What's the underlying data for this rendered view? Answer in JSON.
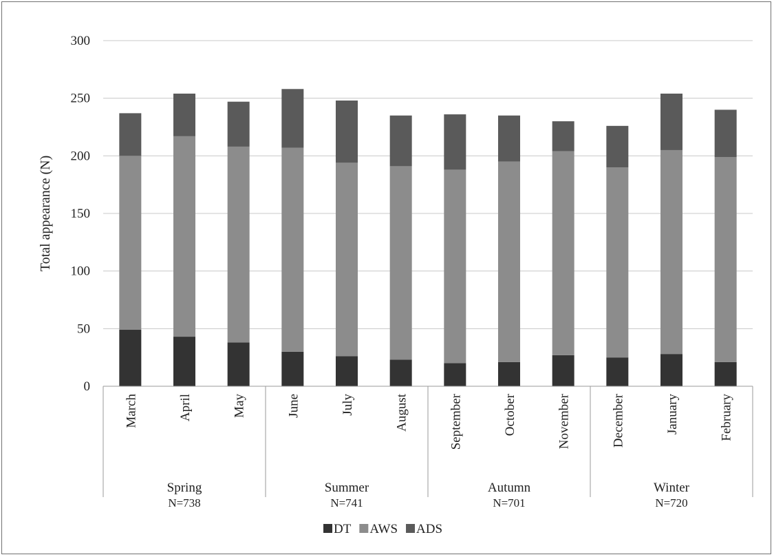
{
  "chart_data": {
    "type": "bar",
    "stacked": true,
    "ylabel": "Total appearance (N)",
    "ylim": [
      0,
      300
    ],
    "yticks": [
      0,
      50,
      100,
      150,
      200,
      250,
      300
    ],
    "grid": true,
    "legend_position": "bottom",
    "categories": [
      "March",
      "April",
      "May",
      "June",
      "July",
      "August",
      "September",
      "October",
      "November",
      "December",
      "January",
      "February"
    ],
    "groups": [
      {
        "name": "Spring",
        "n_label": "N=738",
        "months": 3
      },
      {
        "name": "Summer",
        "n_label": "N=741",
        "months": 3
      },
      {
        "name": "Autumn",
        "n_label": "N=701",
        "months": 3
      },
      {
        "name": "Winter",
        "n_label": "N=720",
        "months": 3
      }
    ],
    "series": [
      {
        "name": "DT",
        "color": "#333333",
        "values": [
          49,
          43,
          38,
          30,
          26,
          23,
          20,
          21,
          27,
          25,
          28,
          21
        ]
      },
      {
        "name": "AWS",
        "color": "#8c8c8c",
        "values": [
          151,
          174,
          170,
          177,
          168,
          168,
          168,
          174,
          177,
          165,
          177,
          178
        ]
      },
      {
        "name": "ADS",
        "color": "#5a5a5a",
        "values": [
          37,
          37,
          39,
          51,
          54,
          44,
          48,
          40,
          26,
          36,
          49,
          41
        ]
      }
    ]
  }
}
